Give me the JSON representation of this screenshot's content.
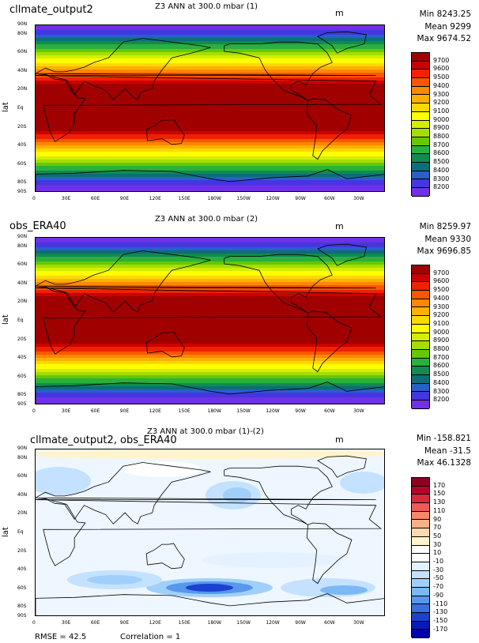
{
  "panels": [
    {
      "case_label": "cllmate_output2",
      "title": "Z3 ANN at 300.0 mbar (1)",
      "units": "m",
      "stats": [
        "Min 8243.25",
        "Mean 9299",
        "Max 9674.52"
      ],
      "ylabel": "lat",
      "colorbar_labels": [
        "9700",
        "9600",
        "9500",
        "9400",
        "9300",
        "9200",
        "9100",
        "9000",
        "8900",
        "8800",
        "8700",
        "8600",
        "8500",
        "8400",
        "8300",
        "8200"
      ],
      "colorbar_colors": [
        "#a00000",
        "#cc0000",
        "#ee2200",
        "#ff5500",
        "#ff8800",
        "#ffb000",
        "#ffd800",
        "#ffff00",
        "#d4ee00",
        "#a6dd00",
        "#66c800",
        "#2ab03c",
        "#128a50",
        "#0c6e78",
        "#2860c8",
        "#4436e0",
        "#7030e8"
      ]
    },
    {
      "case_label": "obs_ERA40",
      "title": "Z3 ANN at 300.0 mbar (2)",
      "units": "m",
      "stats": [
        "Min 8259.97",
        "Mean 9330",
        "Max 9696.85"
      ],
      "ylabel": "lat",
      "colorbar_labels": [
        "9700",
        "9600",
        "9500",
        "9400",
        "9300",
        "9200",
        "9100",
        "9000",
        "8900",
        "8800",
        "8700",
        "8600",
        "8500",
        "8400",
        "8300",
        "8200"
      ],
      "colorbar_colors": [
        "#a00000",
        "#cc0000",
        "#ee2200",
        "#ff5500",
        "#ff8800",
        "#ffb000",
        "#ffd800",
        "#ffff00",
        "#d4ee00",
        "#a6dd00",
        "#66c800",
        "#2ab03c",
        "#128a50",
        "#0c6e78",
        "#2860c8",
        "#4436e0",
        "#7030e8"
      ]
    },
    {
      "case_label": "cllmate_output2, obs_ERA40",
      "title": "Z3 ANN at 300.0 mbar (1)-(2)",
      "units": "m",
      "stats": [
        "Min -158.821",
        "Mean -31.5",
        "Max 46.1328"
      ],
      "ylabel": "lat",
      "colorbar_labels": [
        "170",
        "150",
        "130",
        "110",
        "90",
        "70",
        "50",
        "30",
        "10",
        "-10",
        "-30",
        "-50",
        "-70",
        "-90",
        "-110",
        "-130",
        "-150",
        "-170"
      ],
      "colorbar_colors": [
        "#8c0022",
        "#b8002a",
        "#d8283c",
        "#ee5a5a",
        "#f48868",
        "#f8b088",
        "#fcd8b0",
        "#fff4cc",
        "#ffffff",
        "#ffffff",
        "#e4f2ff",
        "#c4e2ff",
        "#a0d0fa",
        "#7cb8f4",
        "#5898ec",
        "#3870e0",
        "#1c40d0",
        "#0a18c0",
        "#0000a8"
      ]
    }
  ],
  "lat_ticks": [
    "90N",
    "80N",
    "60N",
    "40N",
    "20N",
    "Eq",
    "20S",
    "40S",
    "60S",
    "80S",
    "90S"
  ],
  "lon_ticks": [
    "0",
    "30E",
    "60E",
    "90E",
    "120E",
    "150E",
    "180W",
    "150W",
    "120W",
    "90W",
    "60W",
    "30W"
  ],
  "footer": {
    "rmse": "RMSE = 42.5",
    "correlation": "Correlation = 1"
  }
}
